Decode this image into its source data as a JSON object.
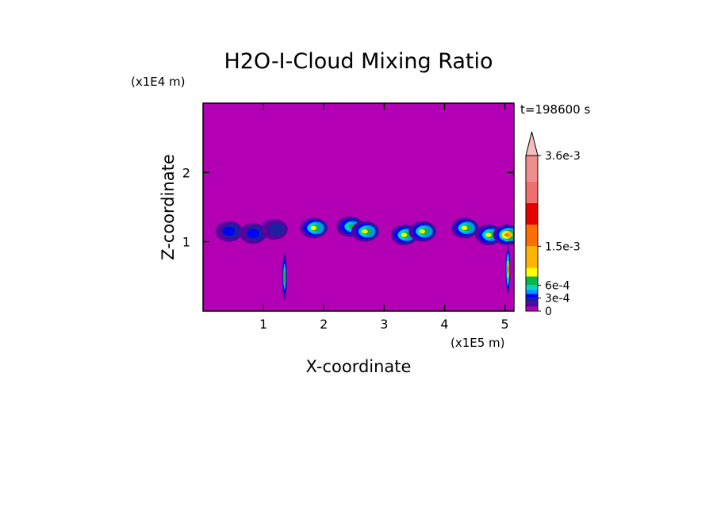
{
  "chart_data": {
    "type": "heatmap",
    "title": "H2O-I-Cloud Mixing Ratio",
    "xlabel": "X-coordinate",
    "ylabel": "Z-coordinate",
    "x_unit": "(x1E5 m)",
    "y_unit": "(x1E4 m)",
    "time_label": "t=198600 s",
    "xlim": [
      0,
      5.15
    ],
    "ylim": [
      0,
      3.0
    ],
    "x_ticks": [
      1,
      2,
      3,
      4,
      5
    ],
    "y_ticks": [
      1,
      2
    ],
    "x_tick_labels": [
      "1",
      "2",
      "3",
      "4",
      "5"
    ],
    "y_tick_labels": [
      "1",
      "2"
    ],
    "background_color": "#b400b4",
    "colorbar": {
      "levels": [
        0,
        0.0001,
        0.0002,
        0.0003,
        0.0004,
        0.0005,
        0.0006,
        0.0008,
        0.001,
        0.0015,
        0.002,
        0.0025,
        0.003,
        0.0036
      ],
      "colors": [
        "#b400b4",
        "#5a00a0",
        "#1e1ea0",
        "#0000ff",
        "#0096ff",
        "#00d2c8",
        "#0ab450",
        "#ffff00",
        "#ffb400",
        "#ff6e00",
        "#e60000",
        "#f06e6e",
        "#f08c8c",
        "#f5bebe"
      ],
      "labels": [
        "0",
        "3e-4",
        "6e-4",
        "1.5e-3",
        "3.6e-3"
      ],
      "label_values": [
        0,
        0.0003,
        0.0006,
        0.0015,
        0.0036
      ],
      "extend": "max"
    },
    "cloud_cells": [
      {
        "x": 0.45,
        "z": 1.15,
        "max": 0.0003
      },
      {
        "x": 0.85,
        "z": 1.12,
        "max": 0.0003
      },
      {
        "x": 1.2,
        "z": 1.18,
        "max": 0.0002
      },
      {
        "x": 1.85,
        "z": 1.2,
        "max": 0.0008
      },
      {
        "x": 2.45,
        "z": 1.22,
        "max": 0.0006
      },
      {
        "x": 2.7,
        "z": 1.15,
        "max": 0.0008
      },
      {
        "x": 3.35,
        "z": 1.1,
        "max": 0.0008
      },
      {
        "x": 3.65,
        "z": 1.15,
        "max": 0.0008
      },
      {
        "x": 4.35,
        "z": 1.2,
        "max": 0.0008
      },
      {
        "x": 4.75,
        "z": 1.1,
        "max": 0.0008
      },
      {
        "x": 5.05,
        "z": 1.1,
        "max": 0.0015
      },
      {
        "x": 1.35,
        "z": 0.5,
        "max": 0.0006
      },
      {
        "x": 5.05,
        "z": 0.6,
        "max": 0.0015
      }
    ]
  }
}
